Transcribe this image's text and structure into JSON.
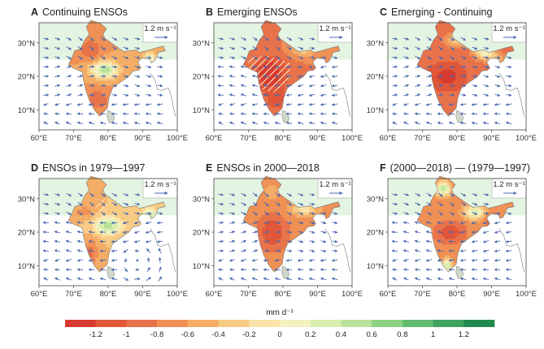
{
  "panels": [
    {
      "letter": "A",
      "title": "Continuing ENSOs",
      "ref_label": "1.2 m s⁻¹",
      "pattern": "continuing"
    },
    {
      "letter": "B",
      "title": "Emerging ENSOs",
      "ref_label": "1.2 m s⁻¹",
      "pattern": "emerging"
    },
    {
      "letter": "C",
      "title": "Emerging - Continuing",
      "ref_label": "1.2 m s⁻¹",
      "pattern": "diff"
    },
    {
      "letter": "D",
      "title": "ENSOs in 1979—1997",
      "ref_label": "1.2 m s⁻¹",
      "pattern": "early"
    },
    {
      "letter": "E",
      "title": "ENSOs in 2000—2018",
      "ref_label": "1.2 m s⁻¹",
      "pattern": "late"
    },
    {
      "letter": "F",
      "title": "(2000—2018) — (1979—1997)",
      "ref_label": "1.2 m s⁻¹",
      "pattern": "diff2"
    }
  ],
  "x_ticks": [
    "60°E",
    "70°E",
    "80°E",
    "90°E",
    "100°E"
  ],
  "y_ticks": [
    "30°N",
    "20°N",
    "10°N"
  ],
  "colorbar": {
    "unit_label": "mm d⁻¹",
    "ticks": [
      "-1.2",
      "-1",
      "-0.8",
      "-0.6",
      "-0.4",
      "-0.2",
      "0",
      "0.2",
      "0.4",
      "0.6",
      "0.8",
      "1",
      "1.2"
    ],
    "colors": [
      "#d73b2f",
      "#e0573a",
      "#e8724a",
      "#ef9055",
      "#f4ad66",
      "#f8cb85",
      "#fae4a8",
      "#f3f1c2",
      "#d9efb0",
      "#b8e29a",
      "#8ed185",
      "#62bc70",
      "#3fa35f",
      "#1f8a4e"
    ]
  }
}
